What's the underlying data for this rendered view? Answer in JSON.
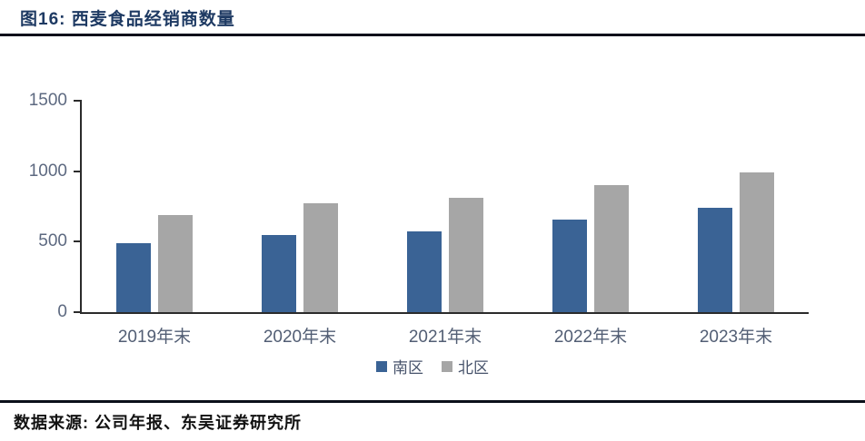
{
  "header": {
    "title": "图16: 西麦食品经销商数量"
  },
  "footer": {
    "source": "数据来源: 公司年报、东吴证券研究所"
  },
  "colors": {
    "title": "#1E3A63",
    "south_series": "#3A6395",
    "north_series": "#A6A6A6",
    "axis": "#2B2B2B",
    "tick_label": "#5D6980",
    "divider": "#0B0F1A"
  },
  "chart_data": {
    "type": "bar",
    "title": "西麦食品经销商数量",
    "categories": [
      "2019年末",
      "2020年末",
      "2021年末",
      "2022年末",
      "2023年末"
    ],
    "series": [
      {
        "name": "南区",
        "color": "#3A6395",
        "values": [
          490,
          545,
          570,
          655,
          740
        ]
      },
      {
        "name": "北区",
        "color": "#A6A6A6",
        "values": [
          690,
          770,
          810,
          900,
          990
        ]
      }
    ],
    "xlabel": "",
    "ylabel": "",
    "ylim": [
      0,
      1500
    ],
    "yticks": [
      0,
      500,
      1000,
      1500
    ],
    "grid": false,
    "legend_position": "bottom"
  }
}
